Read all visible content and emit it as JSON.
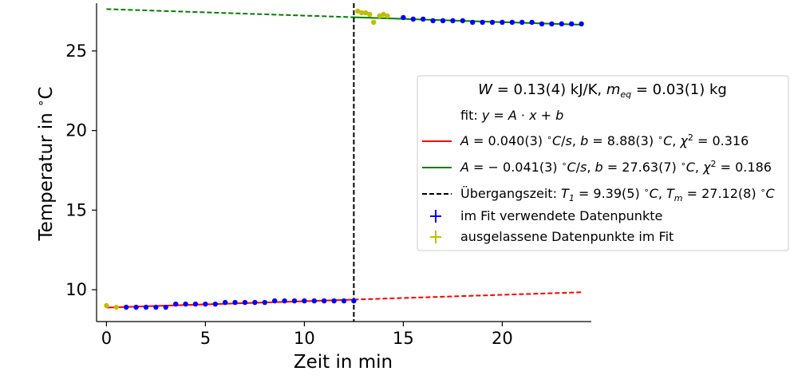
{
  "chart_data": {
    "type": "scatter",
    "title": "",
    "xlabel": "Zeit in min",
    "ylabel": "Temperatur in °C",
    "xlim": [
      -0.5,
      24.5
    ],
    "ylim": [
      8.0,
      28.0
    ],
    "xticks": [
      0,
      5,
      10,
      15,
      20
    ],
    "yticks": [
      10,
      15,
      20,
      25
    ],
    "grid": false,
    "legend_placement": "center-right",
    "legend": {
      "title": "W = 0.13(4) kJ/K, m_eq = 0.03(1) kg",
      "entries": [
        {
          "label": "fit: y = A · x + b",
          "marker": "none"
        },
        {
          "label": "A = 0.040(3) °C/s, b = 8.88(3) °C, χ² = 0.316",
          "marker": "line",
          "color": "#ff0000"
        },
        {
          "label": "A = −0.041(3) °C/s, b = 27.63(7) °C, χ² = 0.186",
          "marker": "line",
          "color": "#008000"
        },
        {
          "label": "Übergangszeit: T₁ = 9.39(5) °C, Tₘ = 27.12(8) °C",
          "marker": "dashed",
          "color": "#000000"
        },
        {
          "label": "im Fit verwendete Datenpunkte",
          "marker": "errorbar",
          "color": "#0000ff"
        },
        {
          "label": "ausgelassene Datenpunkte im Fit",
          "marker": "errorbar",
          "color": "#bfbf00"
        }
      ]
    },
    "transition_time": 12.5,
    "fits": [
      {
        "name": "A = 0.040(3) °C/s, b = 8.88(3) °C, χ² = 0.316",
        "color": "#ff0000",
        "slope": 0.04,
        "intercept": 8.88,
        "x_solid": [
          0,
          12.5
        ],
        "x_dashed": [
          12.5,
          24
        ]
      },
      {
        "name": "A = −0.041(3) °C/s, b = 27.63(7) °C, χ² = 0.186",
        "color": "#008000",
        "slope": -0.041,
        "intercept": 27.63,
        "x_solid": [
          12.5,
          24
        ],
        "x_dashed": [
          0,
          12.5
        ]
      }
    ],
    "series": [
      {
        "name": "im Fit verwendete Datenpunkte",
        "color": "#0000ff",
        "points": [
          [
            1.0,
            8.9
          ],
          [
            1.5,
            8.9
          ],
          [
            2.0,
            8.9
          ],
          [
            2.5,
            8.9
          ],
          [
            3.0,
            8.9
          ],
          [
            3.5,
            9.1
          ],
          [
            4.0,
            9.1
          ],
          [
            4.5,
            9.1
          ],
          [
            5.0,
            9.1
          ],
          [
            5.5,
            9.1
          ],
          [
            6.0,
            9.2
          ],
          [
            6.5,
            9.2
          ],
          [
            7.0,
            9.2
          ],
          [
            7.5,
            9.2
          ],
          [
            8.0,
            9.2
          ],
          [
            8.5,
            9.3
          ],
          [
            9.0,
            9.3
          ],
          [
            9.5,
            9.3
          ],
          [
            10.0,
            9.3
          ],
          [
            10.5,
            9.3
          ],
          [
            11.0,
            9.3
          ],
          [
            11.5,
            9.3
          ],
          [
            12.0,
            9.3
          ],
          [
            12.5,
            9.3
          ],
          [
            15.0,
            27.1
          ],
          [
            15.5,
            27.0
          ],
          [
            16.0,
            27.0
          ],
          [
            16.5,
            26.9
          ],
          [
            17.0,
            26.9
          ],
          [
            17.5,
            26.9
          ],
          [
            18.0,
            26.9
          ],
          [
            18.5,
            26.8
          ],
          [
            19.0,
            26.8
          ],
          [
            19.5,
            26.8
          ],
          [
            20.0,
            26.8
          ],
          [
            20.5,
            26.8
          ],
          [
            21.0,
            26.8
          ],
          [
            21.5,
            26.8
          ],
          [
            22.0,
            26.7
          ],
          [
            22.5,
            26.7
          ],
          [
            23.0,
            26.7
          ],
          [
            23.5,
            26.7
          ],
          [
            24.0,
            26.7
          ]
        ]
      },
      {
        "name": "ausgelassene Datenpunkte im Fit",
        "color": "#bfbf00",
        "points": [
          [
            0.0,
            9.0
          ],
          [
            0.5,
            8.9
          ],
          [
            12.7,
            27.5
          ],
          [
            12.9,
            27.4
          ],
          [
            13.1,
            27.4
          ],
          [
            13.3,
            27.3
          ],
          [
            13.5,
            26.8
          ],
          [
            13.8,
            27.2
          ],
          [
            14.0,
            27.3
          ],
          [
            14.2,
            27.2
          ]
        ]
      }
    ]
  }
}
